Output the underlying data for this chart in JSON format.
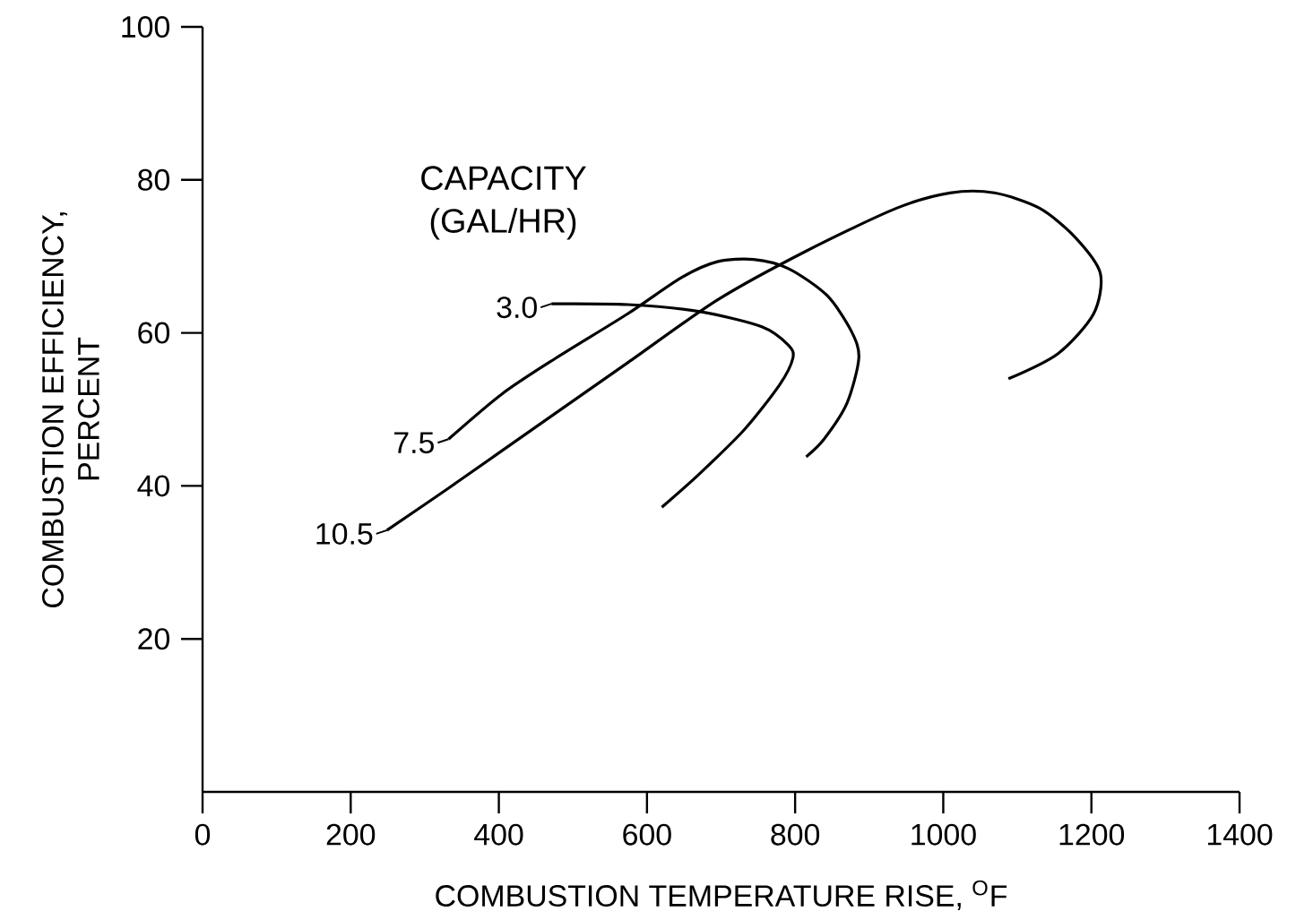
{
  "chart_data": {
    "type": "line",
    "xlabel": "COMBUSTION TEMPERATURE RISE, $^{O}$F",
    "ylabel": "COMBUSTION EFFICIENCY, PERCENT",
    "legend_title": "CAPACITY (GAL/HR)",
    "xlim": [
      0,
      1400
    ],
    "ylim": [
      0,
      100
    ],
    "xticks": [
      0,
      200,
      400,
      600,
      800,
      1000,
      1200,
      1400
    ],
    "yticks": [
      20,
      40,
      60,
      80,
      100
    ],
    "grid": false,
    "legend": "left",
    "marker": "none",
    "line_style": "solid",
    "series": [
      {
        "name": "3.0",
        "color": "#000000",
        "x": [
          471,
          574,
          670,
          755,
          791,
          797,
          779,
          731,
          670,
          620
        ],
        "values": [
          63.8,
          63.7,
          62.8,
          60.8,
          58.4,
          56.7,
          53.2,
          47.3,
          41.5,
          37.2
        ]
      },
      {
        "name": "7.5",
        "color": "#000000",
        "x": [
          332,
          404,
          477,
          574,
          646,
          695,
          744,
          791,
          843,
          876,
          886,
          870,
          839,
          815
        ],
        "values": [
          46.1,
          52,
          56.7,
          62.5,
          67.2,
          69.3,
          69.6,
          68.4,
          64.9,
          60.2,
          56.7,
          50.8,
          46.1,
          43.8
        ]
      },
      {
        "name": "10.5",
        "color": "#000000",
        "x": [
          249,
          332,
          453,
          574,
          695,
          815,
          937,
          1009,
          1069,
          1130,
          1178,
          1212,
          1203,
          1155,
          1088
        ],
        "values": [
          34.2,
          39.7,
          47.9,
          56.1,
          64.3,
          70.7,
          76.3,
          78.3,
          78.3,
          76.3,
          72.5,
          67.8,
          62.5,
          57.3,
          54
        ]
      }
    ]
  }
}
